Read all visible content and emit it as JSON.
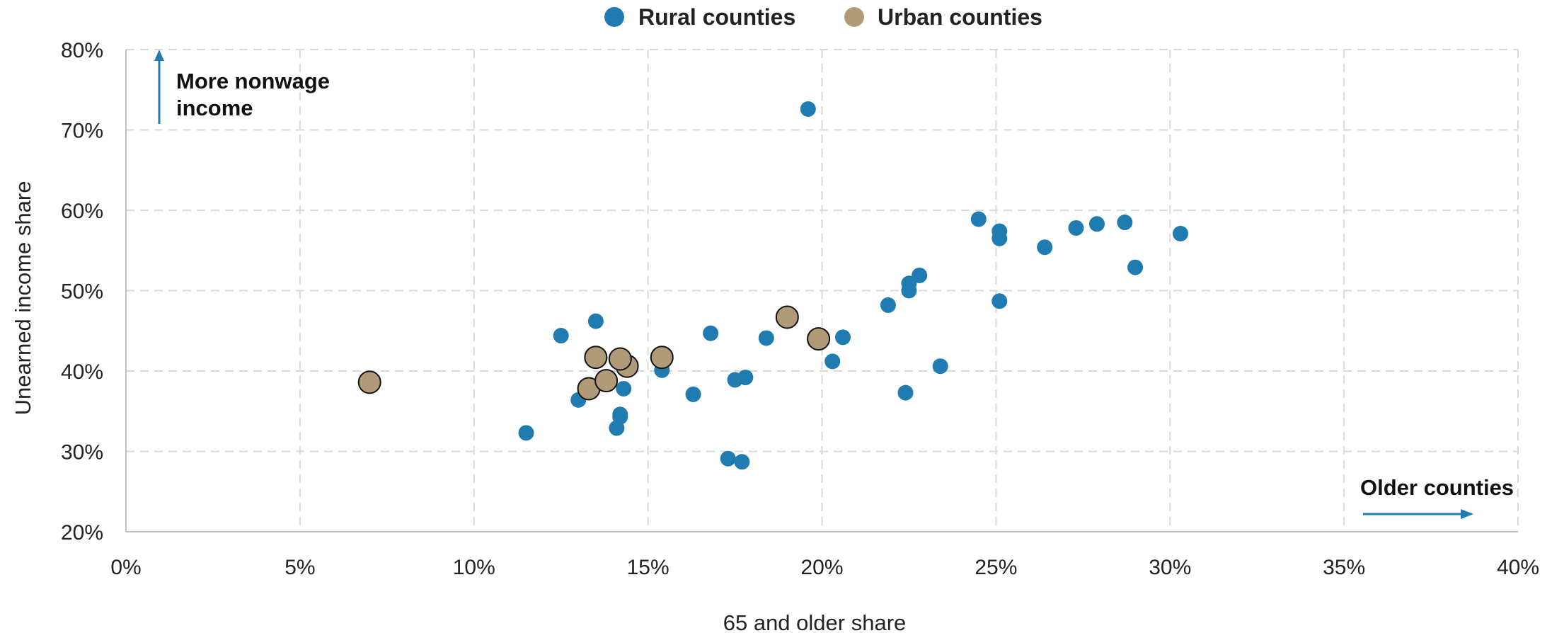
{
  "chart_data": {
    "type": "scatter",
    "xlabel": "65 and older share",
    "ylabel": "Unearned income share",
    "xlim": [
      0,
      40
    ],
    "ylim": [
      20,
      80
    ],
    "x_ticks": [
      "0%",
      "5%",
      "10%",
      "15%",
      "20%",
      "25%",
      "30%",
      "35%",
      "40%"
    ],
    "y_ticks": [
      "20%",
      "30%",
      "40%",
      "50%",
      "60%",
      "70%",
      "80%"
    ],
    "grid": true,
    "legend_position": "top-center",
    "annotations": {
      "y_arrow_lines": [
        "More nonwage",
        "income"
      ],
      "x_arrow_text": "Older counties"
    },
    "colors": {
      "rural": "#1f7bb0",
      "urban": "#b09a78",
      "arrow": "#1f7bb0",
      "grid": "#d9d9d9"
    },
    "series": [
      {
        "name": "Rural counties",
        "points": [
          [
            19.6,
            72.6
          ],
          [
            24.5,
            58.9
          ],
          [
            25.1,
            57.4
          ],
          [
            25.1,
            56.5
          ],
          [
            26.4,
            55.4
          ],
          [
            27.3,
            57.8
          ],
          [
            27.9,
            58.3
          ],
          [
            28.7,
            58.5
          ],
          [
            30.3,
            57.1
          ],
          [
            29.0,
            52.9
          ],
          [
            22.8,
            51.9
          ],
          [
            22.5,
            50.9
          ],
          [
            22.5,
            50.0
          ],
          [
            25.1,
            48.7
          ],
          [
            21.9,
            48.2
          ],
          [
            12.5,
            44.4
          ],
          [
            13.5,
            46.2
          ],
          [
            16.8,
            44.7
          ],
          [
            18.4,
            44.1
          ],
          [
            20.6,
            44.2
          ],
          [
            20.3,
            41.2
          ],
          [
            15.4,
            40.1
          ],
          [
            17.8,
            39.2
          ],
          [
            17.5,
            38.9
          ],
          [
            14.3,
            37.8
          ],
          [
            16.3,
            37.1
          ],
          [
            13.0,
            36.4
          ],
          [
            22.4,
            37.3
          ],
          [
            23.4,
            40.6
          ],
          [
            14.2,
            34.6
          ],
          [
            14.2,
            34.3
          ],
          [
            14.1,
            32.9
          ],
          [
            11.5,
            32.3
          ],
          [
            17.3,
            29.1
          ],
          [
            17.7,
            28.7
          ]
        ]
      },
      {
        "name": "Urban counties",
        "points": [
          [
            7.0,
            38.6
          ],
          [
            13.3,
            37.8
          ],
          [
            13.8,
            38.8
          ],
          [
            13.5,
            41.7
          ],
          [
            14.4,
            40.6
          ],
          [
            14.2,
            41.5
          ],
          [
            15.4,
            41.7
          ],
          [
            19.0,
            46.7
          ],
          [
            19.9,
            44.0
          ]
        ]
      }
    ]
  }
}
